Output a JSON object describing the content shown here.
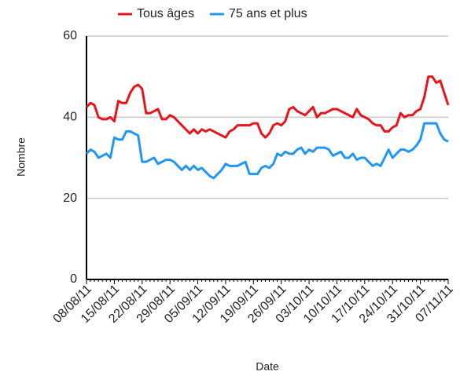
{
  "chart_data": {
    "type": "line",
    "y_label": "Nombre",
    "x_label": "Date",
    "categories": [
      "08/08/11",
      null,
      null,
      null,
      null,
      null,
      null,
      "15/08/11",
      null,
      null,
      null,
      null,
      null,
      null,
      "22/08/11",
      null,
      null,
      null,
      null,
      null,
      null,
      "29/08/11",
      null,
      null,
      null,
      null,
      null,
      null,
      "05/09/11",
      null,
      null,
      null,
      null,
      null,
      null,
      "12/09/11",
      null,
      null,
      null,
      null,
      null,
      null,
      "19/09/11",
      null,
      null,
      null,
      null,
      null,
      null,
      "26/09/11",
      null,
      null,
      null,
      null,
      null,
      null,
      "03/10/11",
      null,
      null,
      null,
      null,
      null,
      null,
      "10/10/11",
      null,
      null,
      null,
      null,
      null,
      null,
      "17/10/11",
      null,
      null,
      null,
      null,
      null,
      null,
      "24/10/11",
      null,
      null,
      null,
      null,
      null,
      null,
      "31/10/11",
      null,
      null,
      null,
      null,
      null,
      null,
      "07/11/11"
    ],
    "series": [
      {
        "name": "Tous âges",
        "color": "#e8141c",
        "values": [
          42.5,
          43.5,
          43,
          40,
          39.5,
          39.5,
          40,
          39,
          44,
          43.5,
          43.5,
          46,
          47.5,
          48,
          47,
          41,
          41,
          41.5,
          42,
          39.5,
          39.5,
          40.5,
          40,
          39,
          38,
          37,
          36,
          37,
          36,
          37,
          36.5,
          37,
          36.5,
          36,
          35.5,
          35,
          36.5,
          37,
          38,
          38,
          38,
          38,
          38.5,
          38.5,
          36,
          35,
          36,
          38,
          38.5,
          38,
          39,
          42,
          42.5,
          41.5,
          41,
          40.5,
          41.5,
          42.5,
          40,
          41,
          41,
          41.5,
          42,
          42,
          41.5,
          41,
          40.5,
          40,
          42,
          40.5,
          40,
          39.5,
          38.5,
          38,
          38,
          36.5,
          36.5,
          37.5,
          38,
          41,
          40,
          40.5,
          40.5,
          41.5,
          42,
          45,
          50,
          50,
          48.5,
          49,
          46,
          43
        ]
      },
      {
        "name": "75 ans et plus",
        "color": "#2196f3",
        "values": [
          31,
          32,
          31.5,
          30,
          30.5,
          31,
          30,
          35,
          34.5,
          34.5,
          36.5,
          36.5,
          36,
          35.5,
          29,
          29,
          29.5,
          30,
          28.5,
          29,
          29.5,
          29.5,
          29,
          28,
          27,
          28,
          27,
          28,
          27,
          27.5,
          26.5,
          25.5,
          25,
          26,
          27,
          28.5,
          28,
          28,
          28,
          28.5,
          29,
          26,
          26,
          26,
          27.5,
          28,
          27.5,
          28.5,
          31,
          30.5,
          31.5,
          31,
          31,
          32,
          32.5,
          31,
          32,
          31.5,
          32.5,
          32.5,
          32.5,
          32,
          30.5,
          31,
          31.5,
          30,
          30,
          31,
          29.5,
          30,
          30,
          29,
          28,
          28.5,
          28,
          30,
          32,
          30,
          31,
          32,
          32,
          31.5,
          32,
          33,
          34.5,
          38.5,
          38.5,
          38.5,
          38.5,
          36,
          34.5,
          34
        ]
      }
    ],
    "ylim": [
      0,
      60
    ],
    "yticks": [
      0,
      20,
      40,
      60
    ],
    "grid": true,
    "legend": "top"
  }
}
